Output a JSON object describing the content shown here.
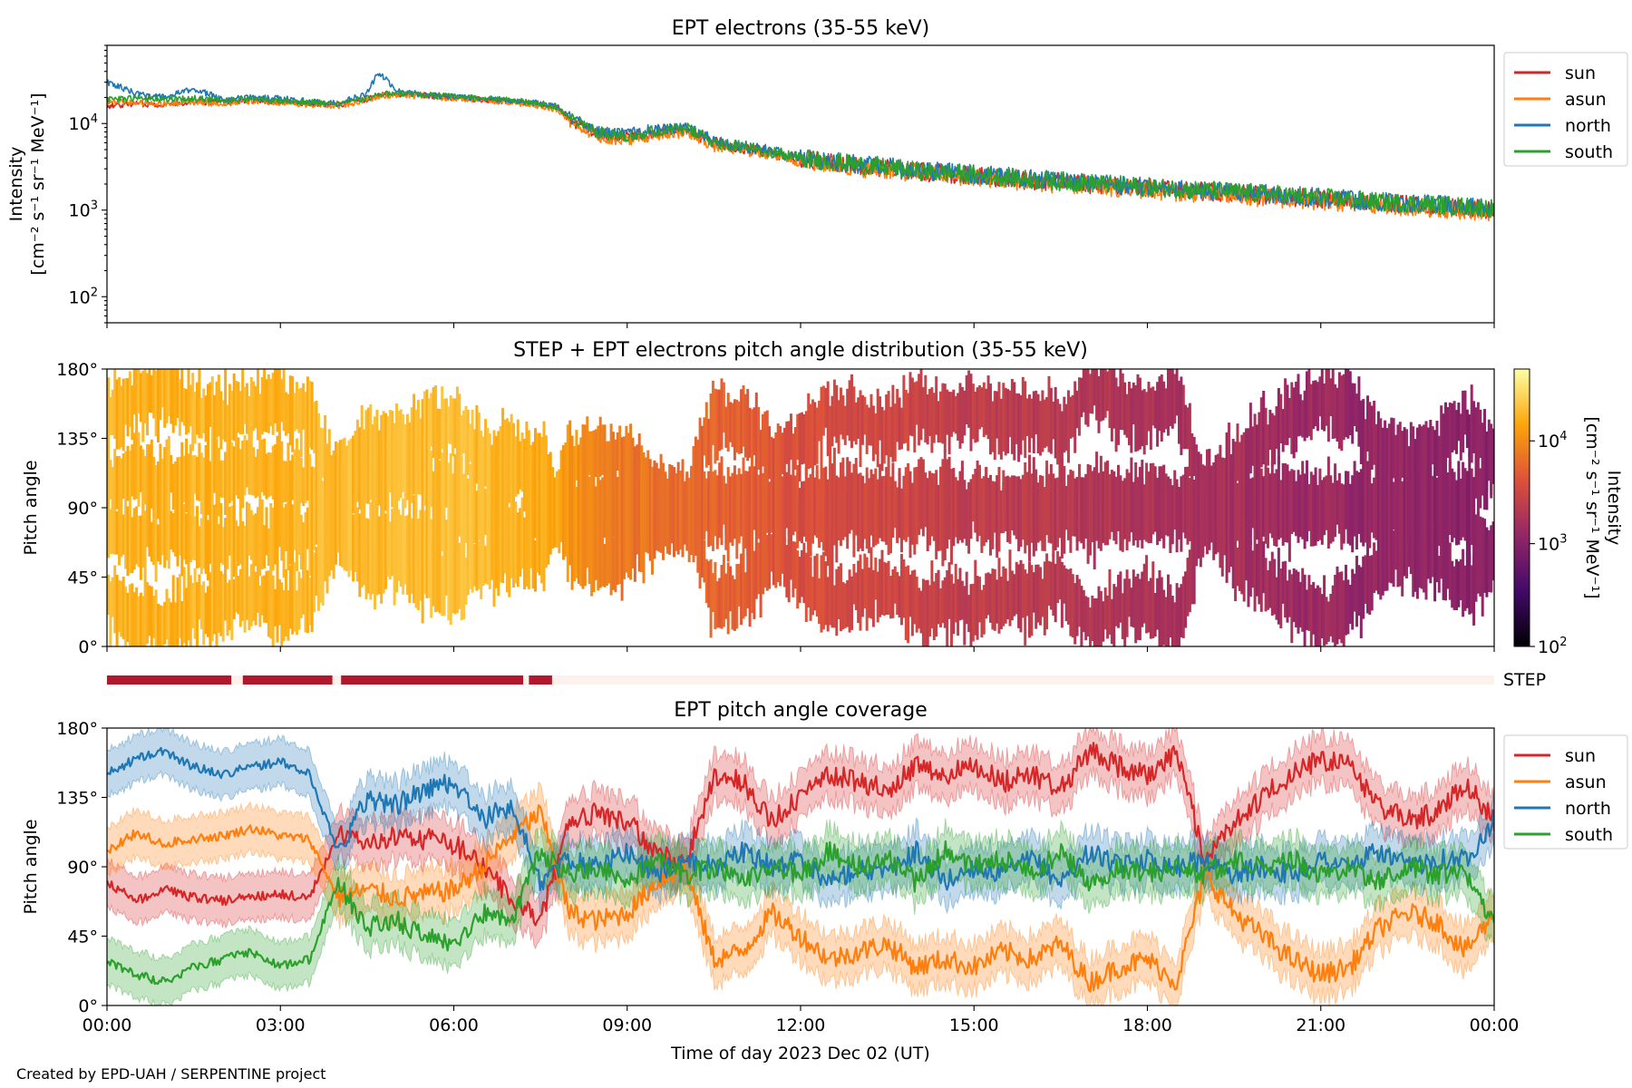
{
  "footer": "Created by EPD-UAH / SERPENTINE project",
  "xlabel": "Time of day 2023 Dec 02 (UT)",
  "colors": {
    "sun": "#d62728",
    "asun": "#ff7f0e",
    "north": "#1f77b4",
    "south": "#2ca02c",
    "step_bar": "#b2182b",
    "step_bg": "#fdf1ec"
  },
  "chart_data": [
    {
      "type": "line",
      "title": "EPT electrons (35-55 keV)",
      "ylabel_line1": "Intensity",
      "ylabel_line2": "[cm⁻² s⁻¹ sr⁻¹ MeV⁻¹]",
      "yscale": "log",
      "ylim": [
        50,
        80000
      ],
      "yticks": [
        {
          "label": "10",
          "exp": "2"
        },
        {
          "label": "10",
          "exp": "3"
        },
        {
          "label": "10",
          "exp": "4"
        }
      ],
      "xlim_hours": [
        0,
        24
      ],
      "legend": {
        "placement": "outside-right",
        "entries": [
          "sun",
          "asun",
          "north",
          "south"
        ]
      },
      "x_hours": [
        0,
        0.5,
        1,
        1.5,
        2,
        2.5,
        3,
        3.5,
        4,
        4.5,
        4.7,
        5,
        5.5,
        6,
        6.5,
        7,
        7.5,
        7.8,
        8,
        8.5,
        9,
        9.5,
        10,
        10.5,
        11,
        11.5,
        12,
        13,
        14,
        15,
        16,
        17,
        18,
        19,
        20,
        21,
        22,
        23,
        24
      ],
      "series": [
        {
          "name": "sun",
          "values": [
            16000,
            17000,
            16500,
            18000,
            17500,
            18500,
            18000,
            17000,
            16500,
            19000,
            21000,
            22000,
            21000,
            20000,
            19000,
            18000,
            16500,
            15000,
            11000,
            7500,
            7000,
            8000,
            8500,
            6000,
            5200,
            4600,
            3900,
            3300,
            2800,
            2500,
            2200,
            2000,
            1800,
            1650,
            1500,
            1350,
            1200,
            1100,
            1000
          ]
        },
        {
          "name": "asun",
          "values": [
            18000,
            17500,
            17000,
            17500,
            17000,
            18000,
            17500,
            16500,
            16000,
            18500,
            20500,
            21500,
            20500,
            19500,
            18500,
            17500,
            16000,
            14500,
            10500,
            7000,
            6500,
            7500,
            8000,
            5500,
            5000,
            4400,
            3700,
            3100,
            2700,
            2400,
            2100,
            1900,
            1700,
            1550,
            1400,
            1250,
            1150,
            1050,
            950
          ]
        },
        {
          "name": "north",
          "values": [
            30000,
            22000,
            20000,
            25000,
            19000,
            20000,
            19500,
            18000,
            17000,
            22000,
            38000,
            24000,
            21500,
            20500,
            19500,
            18500,
            17000,
            15500,
            12000,
            8000,
            7500,
            8500,
            9000,
            6200,
            5400,
            4800,
            4000,
            3400,
            2900,
            2600,
            2300,
            2050,
            1850,
            1700,
            1550,
            1400,
            1250,
            1150,
            1050
          ]
        },
        {
          "name": "south",
          "values": [
            19000,
            19500,
            19000,
            19500,
            18500,
            19000,
            18500,
            17500,
            17000,
            19500,
            21500,
            22500,
            21500,
            20500,
            19500,
            18500,
            17000,
            15500,
            11500,
            7800,
            7200,
            8200,
            8800,
            6100,
            5300,
            4700,
            3950,
            3350,
            2850,
            2550,
            2250,
            2050,
            1850,
            1700,
            1550,
            1400,
            1250,
            1150,
            1050
          ]
        }
      ]
    },
    {
      "type": "heatmap",
      "title": "STEP + EPT electrons pitch angle distribution (35-55 keV)",
      "ylabel": "Pitch angle",
      "ylim": [
        0,
        180
      ],
      "yticks": [
        "0°",
        "45°",
        "90°",
        "135°",
        "180°"
      ],
      "xlim_hours": [
        0,
        24
      ],
      "colorbar": {
        "label_line1": "Intensity",
        "label_line2": "[cm⁻² s⁻¹ sr⁻¹ MeV⁻¹]",
        "scale": "log",
        "range": [
          100,
          50000
        ],
        "ticks": [
          {
            "label": "10",
            "exp": "2"
          },
          {
            "label": "10",
            "exp": "3"
          },
          {
            "label": "10",
            "exp": "4"
          }
        ]
      },
      "intensity_profile": {
        "x_hours": [
          0,
          3,
          6,
          7.8,
          8,
          9,
          10.5,
          12,
          15,
          18,
          21,
          24
        ],
        "values": [
          17000,
          18000,
          20000,
          15000,
          11000,
          7000,
          5500,
          3800,
          2500,
          1800,
          1350,
          1000
        ]
      }
    },
    {
      "type": "bar",
      "label": "STEP",
      "segments_hours": [
        [
          0,
          2.15
        ],
        [
          2.35,
          3.9
        ],
        [
          4.05,
          7.2
        ],
        [
          7.3,
          7.7
        ]
      ]
    },
    {
      "type": "line",
      "title": "EPT pitch angle coverage",
      "ylabel": "Pitch angle",
      "ylim": [
        0,
        180
      ],
      "yticks": [
        "0°",
        "45°",
        "90°",
        "135°",
        "180°"
      ],
      "xlim_hours": [
        0,
        24
      ],
      "xticks": [
        "00:00",
        "03:00",
        "06:00",
        "09:00",
        "12:00",
        "15:00",
        "18:00",
        "21:00",
        "00:00"
      ],
      "legend": {
        "placement": "outside-right",
        "entries": [
          "sun",
          "asun",
          "north",
          "south"
        ]
      },
      "band_halfwidth_deg": 15,
      "x_hours": [
        0,
        0.5,
        1,
        1.5,
        2,
        2.5,
        3,
        3.5,
        4,
        4.5,
        5,
        5.5,
        6,
        6.5,
        7,
        7.5,
        8,
        8.5,
        9,
        9.5,
        10,
        10.5,
        11,
        11.5,
        12,
        12.5,
        13,
        13.5,
        14,
        14.5,
        15,
        15.5,
        16,
        16.5,
        17,
        17.5,
        18,
        18.5,
        19,
        19.5,
        20,
        20.5,
        21,
        21.5,
        22,
        22.5,
        23,
        23.5,
        24
      ],
      "series": [
        {
          "name": "sun",
          "values": [
            80,
            68,
            75,
            70,
            68,
            70,
            72,
            70,
            110,
            105,
            110,
            108,
            105,
            90,
            70,
            55,
            120,
            125,
            120,
            100,
            90,
            150,
            145,
            120,
            135,
            150,
            145,
            140,
            155,
            150,
            155,
            145,
            150,
            140,
            165,
            155,
            150,
            165,
            95,
            120,
            135,
            150,
            160,
            155,
            130,
            120,
            125,
            145,
            120
          ]
        },
        {
          "name": "asun",
          "values": [
            100,
            112,
            105,
            108,
            110,
            115,
            110,
            108,
            70,
            75,
            70,
            72,
            75,
            90,
            110,
            125,
            60,
            55,
            60,
            80,
            90,
            30,
            35,
            60,
            45,
            30,
            35,
            40,
            25,
            30,
            25,
            35,
            30,
            40,
            15,
            25,
            30,
            15,
            85,
            60,
            45,
            30,
            20,
            25,
            50,
            60,
            55,
            35,
            60
          ]
        },
        {
          "name": "north",
          "values": [
            150,
            160,
            165,
            155,
            150,
            155,
            158,
            150,
            100,
            135,
            130,
            140,
            145,
            120,
            130,
            80,
            95,
            90,
            100,
            85,
            95,
            90,
            100,
            90,
            95,
            80,
            90,
            85,
            100,
            80,
            90,
            85,
            95,
            80,
            100,
            90,
            95,
            90,
            95,
            85,
            90,
            85,
            95,
            90,
            100,
            90,
            95,
            95,
            120
          ]
        },
        {
          "name": "south",
          "values": [
            28,
            20,
            15,
            25,
            30,
            35,
            25,
            30,
            80,
            50,
            55,
            45,
            40,
            60,
            55,
            100,
            85,
            90,
            80,
            95,
            85,
            90,
            80,
            90,
            85,
            100,
            90,
            95,
            80,
            100,
            90,
            95,
            85,
            100,
            80,
            90,
            85,
            90,
            85,
            95,
            90,
            95,
            85,
            90,
            80,
            90,
            85,
            85,
            55
          ]
        }
      ]
    }
  ]
}
